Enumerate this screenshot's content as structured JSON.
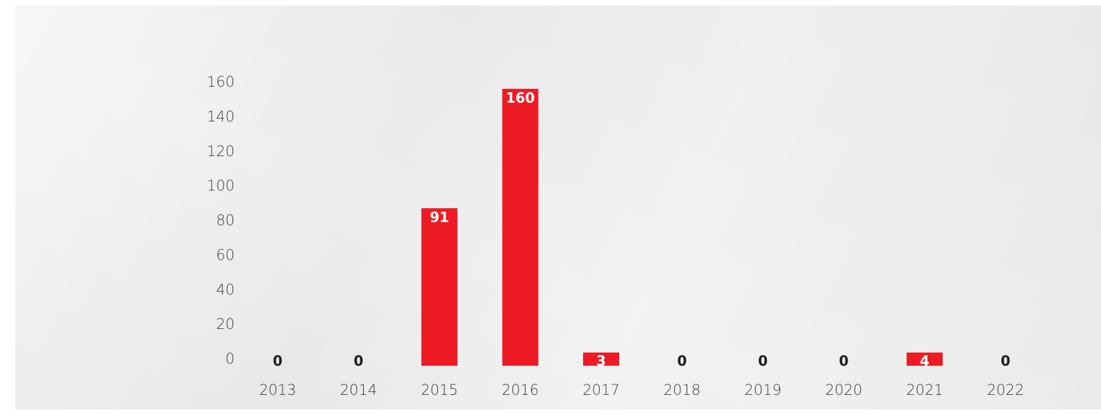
{
  "chart_data": {
    "type": "bar",
    "categories": [
      "2013",
      "2014",
      "2015",
      "2016",
      "2017",
      "2018",
      "2019",
      "2020",
      "2021",
      "2022"
    ],
    "values": [
      0,
      0,
      91,
      160,
      3,
      0,
      0,
      0,
      4,
      0
    ],
    "data_labels": [
      "0",
      "0",
      "91",
      "160",
      "3",
      "0",
      "0",
      "0",
      "4",
      "0"
    ],
    "yticks": [
      "0",
      "20",
      "40",
      "60",
      "80",
      "100",
      "120",
      "140",
      "160"
    ],
    "ytick_values": [
      0,
      20,
      40,
      60,
      80,
      100,
      120,
      140,
      160
    ],
    "ylim": [
      0,
      160
    ],
    "title": "",
    "xlabel": "",
    "ylabel": "",
    "grid": false,
    "legend": "none",
    "colors": {
      "bar": "#ed1c24",
      "label_inside": "#ffffff",
      "label_outside": "#1e1e1e",
      "tick_text": "#3c3c3c",
      "background": "#ececec"
    }
  }
}
